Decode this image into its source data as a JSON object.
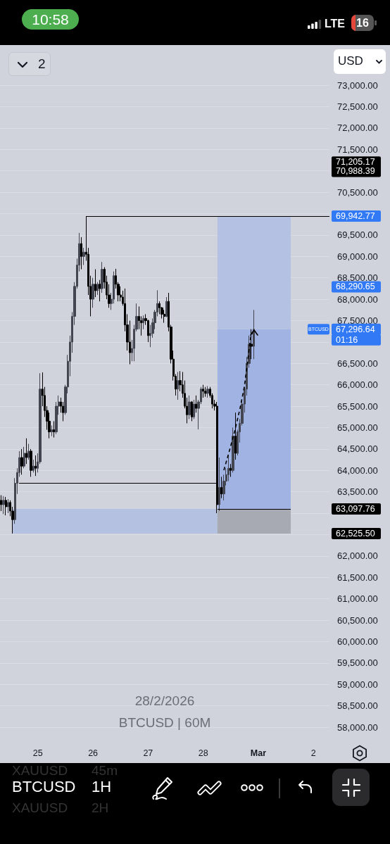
{
  "chart_data": {
    "type": "candlestick",
    "title": "28/2/2026",
    "subtitle": "BTCUSD | 60M",
    "x": [
      "2026-02-24T08:00",
      "2026-02-24T09:00",
      "2026-02-24T10:00",
      "2026-02-24T11:00",
      "2026-02-24T12:00",
      "2026-02-24T13:00",
      "2026-02-24T14:00",
      "2026-02-24T15:00",
      "2026-02-24T16:00",
      "2026-02-24T17:00",
      "2026-02-24T18:00",
      "2026-02-24T19:00",
      "2026-02-24T20:00",
      "2026-02-24T21:00",
      "2026-02-24T22:00",
      "2026-02-24T23:00",
      "2026-02-25T00:00",
      "2026-02-25T01:00",
      "2026-02-25T02:00",
      "2026-02-25T03:00",
      "2026-02-25T04:00",
      "2026-02-25T05:00",
      "2026-02-25T06:00",
      "2026-02-25T07:00",
      "2026-02-25T08:00",
      "2026-02-25T09:00",
      "2026-02-25T10:00",
      "2026-02-25T11:00",
      "2026-02-25T12:00",
      "2026-02-25T13:00",
      "2026-02-25T14:00",
      "2026-02-25T15:00",
      "2026-02-25T16:00",
      "2026-02-25T17:00",
      "2026-02-25T18:00",
      "2026-02-25T19:00",
      "2026-02-25T20:00",
      "2026-02-25T21:00",
      "2026-02-25T22:00",
      "2026-02-25T23:00",
      "2026-02-26T00:00",
      "2026-02-26T01:00",
      "2026-02-26T02:00",
      "2026-02-26T03:00",
      "2026-02-26T04:00",
      "2026-02-26T05:00",
      "2026-02-26T06:00",
      "2026-02-26T07:00",
      "2026-02-26T08:00",
      "2026-02-26T09:00",
      "2026-02-26T10:00",
      "2026-02-26T11:00",
      "2026-02-26T12:00",
      "2026-02-26T13:00",
      "2026-02-26T14:00",
      "2026-02-26T15:00",
      "2026-02-26T16:00",
      "2026-02-26T17:00",
      "2026-02-26T18:00",
      "2026-02-26T19:00",
      "2026-02-26T20:00",
      "2026-02-26T21:00",
      "2026-02-26T22:00",
      "2026-02-26T23:00",
      "2026-02-27T00:00",
      "2026-02-27T01:00",
      "2026-02-27T02:00",
      "2026-02-27T03:00",
      "2026-02-27T04:00",
      "2026-02-27T05:00",
      "2026-02-27T06:00",
      "2026-02-27T07:00",
      "2026-02-27T08:00",
      "2026-02-27T09:00",
      "2026-02-27T10:00",
      "2026-02-27T11:00",
      "2026-02-27T12:00",
      "2026-02-27T13:00",
      "2026-02-27T14:00",
      "2026-02-27T15:00",
      "2026-02-27T16:00",
      "2026-02-27T17:00",
      "2026-02-27T18:00",
      "2026-02-27T19:00",
      "2026-02-27T20:00",
      "2026-02-27T21:00",
      "2026-02-27T22:00",
      "2026-02-27T23:00",
      "2026-02-28T00:00",
      "2026-02-28T01:00",
      "2026-02-28T02:00",
      "2026-02-28T03:00",
      "2026-02-28T04:00",
      "2026-02-28T05:00",
      "2026-02-28T06:00",
      "2026-02-28T07:00",
      "2026-02-28T08:00",
      "2026-02-28T09:00",
      "2026-02-28T10:00",
      "2026-02-28T11:00",
      "2026-02-28T12:00",
      "2026-02-28T13:00",
      "2026-02-28T14:00",
      "2026-02-28T15:00",
      "2026-02-28T16:00",
      "2026-02-28T17:00",
      "2026-02-28T18:00",
      "2026-02-28T19:00",
      "2026-02-28T20:00",
      "2026-02-28T21:00",
      "2026-02-28T22:00"
    ],
    "ohlc": [
      [
        63300,
        63420,
        63050,
        63200
      ],
      [
        63200,
        63400,
        62980,
        63300
      ],
      [
        63300,
        63380,
        62950,
        63150
      ],
      [
        63150,
        63330,
        63000,
        63250
      ],
      [
        63250,
        63300,
        62930,
        63050
      ],
      [
        63050,
        63150,
        62525.5,
        62850
      ],
      [
        62850,
        63820,
        62750,
        63700
      ],
      [
        63700,
        64050,
        63450,
        63950
      ],
      [
        63950,
        64450,
        63850,
        64300
      ],
      [
        64300,
        64500,
        63900,
        64100
      ],
      [
        64100,
        64550,
        64050,
        64400
      ],
      [
        64400,
        64750,
        64150,
        64300
      ],
      [
        64300,
        64620,
        64250,
        64450
      ],
      [
        64450,
        64500,
        63850,
        64000
      ],
      [
        64000,
        64250,
        63950,
        64100
      ],
      [
        64100,
        64350,
        63870,
        64050
      ],
      [
        64050,
        64400,
        63950,
        64200
      ],
      [
        64200,
        66270,
        64150,
        65900
      ],
      [
        65900,
        66290,
        65500,
        65750
      ],
      [
        65750,
        65950,
        65250,
        65400
      ],
      [
        65400,
        65500,
        64950,
        65150
      ],
      [
        65150,
        65350,
        64750,
        64900
      ],
      [
        64900,
        65050,
        64800,
        64950
      ],
      [
        64950,
        65150,
        64770,
        64900
      ],
      [
        64900,
        65600,
        64850,
        65500
      ],
      [
        65500,
        65750,
        65300,
        65600
      ],
      [
        65600,
        65700,
        65350,
        65500
      ],
      [
        65500,
        65600,
        65150,
        65350
      ],
      [
        65350,
        66000,
        65300,
        65950
      ],
      [
        65950,
        66700,
        65800,
        66550
      ],
      [
        66550,
        67150,
        66200,
        67000
      ],
      [
        67000,
        67700,
        66750,
        67600
      ],
      [
        67600,
        68400,
        67400,
        68300
      ],
      [
        68300,
        68950,
        68250,
        68800
      ],
      [
        68800,
        69550,
        68650,
        69300
      ],
      [
        69300,
        69450,
        68700,
        69000
      ],
      [
        69000,
        69200,
        68800,
        69100
      ],
      [
        69100,
        69942.77,
        68900,
        69050
      ],
      [
        69050,
        69200,
        68100,
        68300
      ],
      [
        68300,
        68550,
        67600,
        68000
      ],
      [
        68000,
        68500,
        67800,
        68350
      ],
      [
        68350,
        68700,
        68050,
        68200
      ],
      [
        68200,
        68400,
        68100,
        68350
      ],
      [
        68350,
        68450,
        67950,
        68250
      ],
      [
        68250,
        68870,
        68150,
        68700
      ],
      [
        68700,
        68750,
        68250,
        68400
      ],
      [
        68400,
        68550,
        68000,
        68100
      ],
      [
        68100,
        68350,
        67800,
        67900
      ],
      [
        67900,
        68150,
        67750,
        68000
      ],
      [
        68000,
        68650,
        67900,
        68550
      ],
      [
        68550,
        68710,
        68250,
        68350
      ],
      [
        68350,
        68400,
        67950,
        68100
      ],
      [
        68100,
        68300,
        67950,
        68050
      ],
      [
        68050,
        68200,
        67850,
        67900
      ],
      [
        67900,
        68250,
        67250,
        67400
      ],
      [
        67400,
        67650,
        66800,
        67000
      ],
      [
        67000,
        67500,
        66480,
        66750
      ],
      [
        66750,
        67050,
        66550,
        66850
      ],
      [
        66850,
        67400,
        66550,
        67300
      ],
      [
        67300,
        67900,
        67250,
        67600
      ],
      [
        67600,
        67830,
        67300,
        67500
      ],
      [
        67500,
        67600,
        67150,
        67450
      ],
      [
        67450,
        67620,
        67300,
        67550
      ],
      [
        67550,
        67650,
        67400,
        67500
      ],
      [
        67500,
        67520,
        67000,
        67150
      ],
      [
        67150,
        67400,
        66880,
        67200
      ],
      [
        67200,
        67550,
        67100,
        67450
      ],
      [
        67450,
        67750,
        67300,
        67700
      ],
      [
        67700,
        68210,
        67600,
        67900
      ],
      [
        67900,
        67950,
        67650,
        67800
      ],
      [
        67800,
        67820,
        67550,
        67650
      ],
      [
        67650,
        67750,
        67450,
        67600
      ],
      [
        67600,
        68050,
        67580,
        67950
      ],
      [
        67950,
        68150,
        67250,
        67350
      ],
      [
        67350,
        67400,
        66500,
        66600
      ],
      [
        66600,
        66800,
        66100,
        66200
      ],
      [
        66200,
        66250,
        65750,
        65900
      ],
      [
        65900,
        66300,
        65650,
        66100
      ],
      [
        66100,
        66320,
        65850,
        66000
      ],
      [
        66000,
        66300,
        65700,
        65800
      ],
      [
        65800,
        66100,
        65450,
        65500
      ],
      [
        65500,
        65700,
        65100,
        65300
      ],
      [
        65300,
        65750,
        65200,
        65600
      ],
      [
        65600,
        65620,
        65150,
        65250
      ],
      [
        65250,
        65650,
        65200,
        65550
      ],
      [
        65550,
        65750,
        65350,
        65450
      ],
      [
        65450,
        65650,
        64960,
        65600
      ],
      [
        65600,
        65950,
        65550,
        65900
      ],
      [
        65900,
        66000,
        65700,
        65850
      ],
      [
        65850,
        65950,
        65720,
        65800
      ],
      [
        65800,
        65970,
        65700,
        65900
      ],
      [
        65900,
        65950,
        65700,
        65750
      ],
      [
        65750,
        65800,
        65450,
        65550
      ],
      [
        65550,
        65650,
        65400,
        65500
      ],
      [
        65500,
        65600,
        63000,
        63200
      ],
      [
        63200,
        64300,
        63050,
        63600
      ],
      [
        63600,
        63850,
        63350,
        63450
      ],
      [
        63450,
        63900,
        63300,
        63750
      ],
      [
        63750,
        64050,
        63650,
        63900
      ],
      [
        63900,
        64350,
        63750,
        64050
      ],
      [
        64050,
        64150,
        63850,
        64000
      ],
      [
        64000,
        65000,
        63950,
        64800
      ],
      [
        64800,
        65350,
        64250,
        64400
      ],
      [
        64400,
        64950,
        64350,
        64900
      ],
      [
        64900,
        65200,
        64650,
        65100
      ],
      [
        65100,
        65650,
        65050,
        65550
      ],
      [
        65550,
        65950,
        65350,
        65900
      ],
      [
        65900,
        66650,
        65750,
        66500
      ],
      [
        66500,
        67150,
        66400,
        66950
      ],
      [
        66950,
        67300,
        66600,
        66900
      ],
      [
        66900,
        67750,
        66600,
        67296.64
      ]
    ],
    "colors": [
      "#000000",
      "#434651",
      "#000000",
      "#434651",
      "#000000",
      "#000000",
      "#434651",
      "#434651",
      "#434651",
      "#000000",
      "#434651",
      "#000000",
      "#434651",
      "#000000",
      "#434651",
      "#000000",
      "#434651",
      "#434651",
      "#000000",
      "#000000",
      "#000000",
      "#000000",
      "#434651",
      "#000000",
      "#434651",
      "#434651",
      "#000000",
      "#000000",
      "#434651",
      "#434651",
      "#434651",
      "#434651",
      "#434651",
      "#434651",
      "#434651",
      "#000000",
      "#434651",
      "#000000",
      "#000000",
      "#000000",
      "#434651",
      "#000000",
      "#434651",
      "#000000",
      "#434651",
      "#000000",
      "#000000",
      "#000000",
      "#434651",
      "#434651",
      "#000000",
      "#000000",
      "#000000",
      "#000000",
      "#000000",
      "#000000",
      "#000000",
      "#434651",
      "#434651",
      "#434651",
      "#000000",
      "#000000",
      "#434651",
      "#000000",
      "#000000",
      "#434651",
      "#434651",
      "#434651",
      "#434651",
      "#000000",
      "#000000",
      "#000000",
      "#434651",
      "#000000",
      "#000000",
      "#000000",
      "#000000",
      "#434651",
      "#000000",
      "#000000",
      "#000000",
      "#000000",
      "#434651",
      "#000000",
      "#434651",
      "#000000",
      "#434651",
      "#434651",
      "#000000",
      "#000000",
      "#434651",
      "#000000",
      "#000000",
      "#000000",
      "#000000",
      "#434651",
      "#000000",
      "#434651",
      "#434651",
      "#434651",
      "#000000",
      "#434651",
      "#000000",
      "#434651",
      "#434651",
      "#434651",
      "#434651",
      "#434651",
      "#434651",
      "#000000",
      "#434651"
    ],
    "xlim": [
      "2026-02-24T07:30",
      "2026-03-02T07:00"
    ],
    "xticks": [
      {
        "value": "2026-02-25",
        "label": "25"
      },
      {
        "value": "2026-02-26",
        "label": "26"
      },
      {
        "value": "2026-02-27",
        "label": "27"
      },
      {
        "value": "2026-02-28",
        "label": "28"
      },
      {
        "value": "2026-03-01",
        "label": "Mar"
      },
      {
        "value": "2026-03-02",
        "label": "2"
      }
    ],
    "ylim": [
      58000,
      73940
    ],
    "yticks": [
      {
        "value": 58000,
        "label": "58,000.00"
      },
      {
        "value": 58500,
        "label": "58,500.00"
      },
      {
        "value": 59000,
        "label": "59,000.00"
      },
      {
        "value": 59500,
        "label": "59,500.00"
      },
      {
        "value": 60000,
        "label": "60,000.00"
      },
      {
        "value": 60500,
        "label": "60,500.00"
      },
      {
        "value": 61000,
        "label": "61,000.00"
      },
      {
        "value": 61500,
        "label": "61,500.00"
      },
      {
        "value": 62000,
        "label": "62,000.00"
      },
      {
        "value": 62500,
        "label": null
      },
      {
        "value": 63000,
        "label": null
      },
      {
        "value": 63500,
        "label": "63,500.00"
      },
      {
        "value": 64000,
        "label": "64,000.00"
      },
      {
        "value": 64500,
        "label": "64,500.00"
      },
      {
        "value": 65000,
        "label": "65,000.00"
      },
      {
        "value": 65500,
        "label": "65,500.00"
      },
      {
        "value": 66000,
        "label": "66,000.00"
      },
      {
        "value": 66500,
        "label": "66,500.00"
      },
      {
        "value": 67000,
        "label": null
      },
      {
        "value": 67500,
        "label": "67,500.00"
      },
      {
        "value": 68000,
        "label": "68,000.00"
      },
      {
        "value": 68500,
        "label": "68,500.00"
      },
      {
        "value": 69000,
        "label": "69,000.00"
      },
      {
        "value": 69500,
        "label": "69,500.00"
      },
      {
        "value": 70000,
        "label": null
      },
      {
        "value": 70500,
        "label": "70,500.00"
      },
      {
        "value": 71000,
        "label": null
      },
      {
        "value": 71500,
        "label": "71,500.00"
      },
      {
        "value": 72000,
        "label": "72,000.00"
      },
      {
        "value": 72500,
        "label": "72,500.00"
      },
      {
        "value": 73000,
        "label": "73,000.00"
      }
    ],
    "grid": "y",
    "ref_lines": [
      {
        "axis": "y",
        "value": 69942.77,
        "label": "69,942.77",
        "color": "#000000",
        "line_style": "solid"
      },
      {
        "axis": "y",
        "value": 63700,
        "color": "#000000",
        "line_style": "solid"
      },
      {
        "axis": "y",
        "value": 63097.76,
        "color": "#000000",
        "line_style": "solid"
      }
    ],
    "bands": [
      {
        "axis": "y",
        "from": 62525.5,
        "to": 63097.76,
        "color": "#b5c1e0"
      },
      {
        "axis": "y",
        "from": 62525.5,
        "to": 63097.76,
        "color": "#a8aab3"
      },
      {
        "axis": "y",
        "from": 63097.76,
        "to": 67296.64,
        "color": "#a0b3e2"
      },
      {
        "axis": "y",
        "from": 67296.64,
        "to": 69942.77,
        "color": "#b4c1e2"
      }
    ],
    "annotations": [
      {
        "text": "BTCUSD",
        "y": 67296.64
      },
      "71,205.17",
      "70,988.39",
      "68,290.65",
      "67,296.64",
      "01:16",
      "63,097.76",
      "62,525.50",
      "10:58",
      "LTE",
      "16",
      "2",
      "USD",
      "XAUUSD",
      "45m",
      "BTCUSD",
      "1H",
      "XAUUSD",
      "2H"
    ]
  }
}
